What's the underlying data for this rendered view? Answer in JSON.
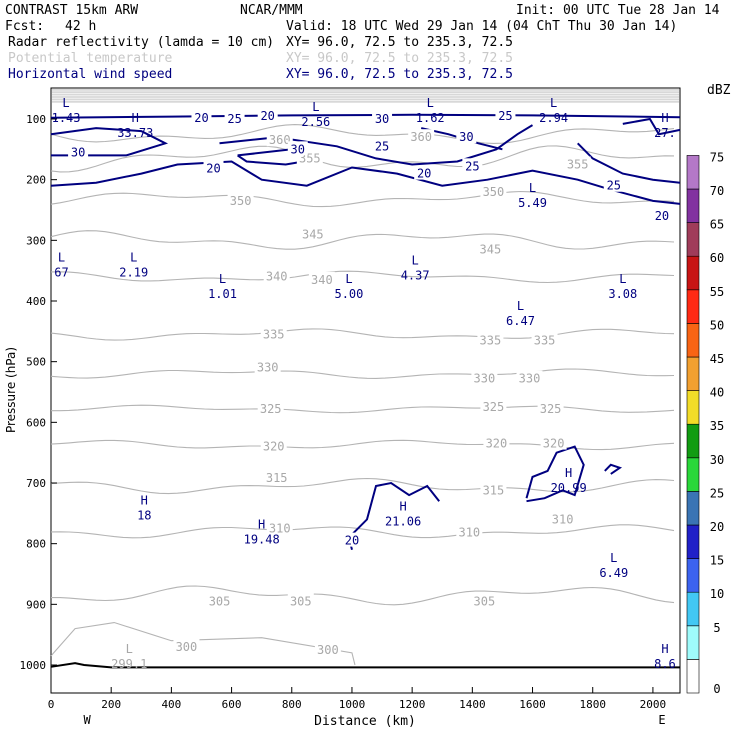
{
  "header": {
    "model": "CONTRAST 15km ARW",
    "org": "NCAR/MMM",
    "init": "Init: 00 UTC Tue 28 Jan 14",
    "fcst_label": "Fcst:",
    "fcst_value": "42 h",
    "valid": "Valid: 18 UTC Wed 29 Jan 14 (04 ChT Thu 30 Jan 14)",
    "fields": [
      {
        "name": "Radar reflectivity (lamda = 10 cm)",
        "xy": "XY=  96.0, 72.5 to 235.3, 72.5",
        "color": "#000000"
      },
      {
        "name": "Potential temperature",
        "xy": "XY=  96.0, 72.5 to 235.3, 72.5",
        "color": "#c8c8c8"
      },
      {
        "name": "Horizontal wind speed",
        "xy": "XY=  96.0, 72.5 to 235.3, 72.5",
        "color": "#000080"
      }
    ]
  },
  "chart_data": {
    "type": "cross-section",
    "xlabel": "Distance (km)",
    "ylabel": "Pressure (hPa)",
    "xlim": [
      0,
      2090
    ],
    "ylim_hPa": [
      1050,
      50
    ],
    "x_ticks": [
      "0",
      "200",
      "400",
      "600",
      "800",
      "1000",
      "1200",
      "1400",
      "1600",
      "1800",
      "2000"
    ],
    "y_ticks": [
      "100",
      "200",
      "300",
      "400",
      "500",
      "600",
      "700",
      "800",
      "900",
      "1000"
    ],
    "x_endpoints": [
      "W",
      "E"
    ],
    "colorbar": {
      "unit": "dBZ",
      "levels": [
        "0",
        "5",
        "10",
        "15",
        "20",
        "25",
        "30",
        "35",
        "40",
        "45",
        "50",
        "55",
        "60",
        "65",
        "70",
        "75"
      ],
      "colors": [
        "#ffffff",
        "#9ffcfc",
        "#42c8f4",
        "#3c63f0",
        "#2020c8",
        "#3a74b4",
        "#2ad73a",
        "#129c12",
        "#f2dc28",
        "#f2a030",
        "#f86414",
        "#ff2a14",
        "#c81414",
        "#a03c5a",
        "#8232a0",
        "#b478c8"
      ]
    },
    "theta_labels": [
      {
        "text": "360",
        "x": 760,
        "p": 135
      },
      {
        "text": "360",
        "x": 1230,
        "p": 130
      },
      {
        "text": "355",
        "x": 860,
        "p": 165
      },
      {
        "text": "355",
        "x": 1750,
        "p": 175
      },
      {
        "text": "350",
        "x": 630,
        "p": 235
      },
      {
        "text": "350",
        "x": 1470,
        "p": 220
      },
      {
        "text": "345",
        "x": 870,
        "p": 290
      },
      {
        "text": "345",
        "x": 1460,
        "p": 315
      },
      {
        "text": "340",
        "x": 750,
        "p": 360
      },
      {
        "text": "340",
        "x": 900,
        "p": 365
      },
      {
        "text": "335",
        "x": 740,
        "p": 455
      },
      {
        "text": "335",
        "x": 1460,
        "p": 465
      },
      {
        "text": "335",
        "x": 1640,
        "p": 465
      },
      {
        "text": "330",
        "x": 720,
        "p": 510
      },
      {
        "text": "330",
        "x": 1440,
        "p": 528
      },
      {
        "text": "330",
        "x": 1590,
        "p": 528
      },
      {
        "text": "325",
        "x": 730,
        "p": 578
      },
      {
        "text": "325",
        "x": 1470,
        "p": 575
      },
      {
        "text": "325",
        "x": 1660,
        "p": 578
      },
      {
        "text": "320",
        "x": 740,
        "p": 640
      },
      {
        "text": "320",
        "x": 1480,
        "p": 635
      },
      {
        "text": "320",
        "x": 1670,
        "p": 635
      },
      {
        "text": "315",
        "x": 750,
        "p": 692
      },
      {
        "text": "315",
        "x": 1470,
        "p": 712
      },
      {
        "text": "310",
        "x": 760,
        "p": 775
      },
      {
        "text": "310",
        "x": 1390,
        "p": 782
      },
      {
        "text": "310",
        "x": 1700,
        "p": 760
      },
      {
        "text": "305",
        "x": 560,
        "p": 895
      },
      {
        "text": "305",
        "x": 830,
        "p": 895
      },
      {
        "text": "305",
        "x": 1440,
        "p": 895
      },
      {
        "text": "300",
        "x": 450,
        "p": 970
      },
      {
        "text": "300",
        "x": 920,
        "p": 975
      }
    ],
    "wind_labels": [
      {
        "text": "30",
        "x": 90,
        "p": 155
      },
      {
        "text": "20",
        "x": 540,
        "p": 182
      },
      {
        "text": "30",
        "x": 820,
        "p": 150
      },
      {
        "text": "25",
        "x": 1100,
        "p": 145
      },
      {
        "text": "30",
        "x": 1380,
        "p": 130
      },
      {
        "text": "25",
        "x": 1400,
        "p": 178
      },
      {
        "text": "20",
        "x": 1240,
        "p": 190
      },
      {
        "text": "25",
        "x": 1870,
        "p": 210
      },
      {
        "text": "20",
        "x": 2030,
        "p": 260
      },
      {
        "text": "20",
        "x": 500,
        "p": 98
      },
      {
        "text": "25",
        "x": 610,
        "p": 100
      },
      {
        "text": "20",
        "x": 720,
        "p": 95
      },
      {
        "text": "30",
        "x": 1100,
        "p": 100
      },
      {
        "text": "25",
        "x": 1510,
        "p": 95
      },
      {
        "text": "20",
        "x": 1000,
        "p": 795
      }
    ],
    "extrema": [
      {
        "type": "L",
        "value": "1.43",
        "x": 50,
        "p": 85
      },
      {
        "type": "H",
        "value": "33.73",
        "x": 280,
        "p": 110
      },
      {
        "type": "L",
        "value": "2.56",
        "x": 880,
        "p": 92
      },
      {
        "type": "L",
        "value": "1.62",
        "x": 1260,
        "p": 85
      },
      {
        "type": "L",
        "value": "2.94",
        "x": 1670,
        "p": 85
      },
      {
        "type": "H",
        "value": "27.",
        "x": 2040,
        "p": 110
      },
      {
        "type": "L",
        "value": "5.49",
        "x": 1600,
        "p": 225
      },
      {
        "type": "L",
        "value": "67",
        "x": 35,
        "p": 340
      },
      {
        "type": "L",
        "value": "2.19",
        "x": 275,
        "p": 340
      },
      {
        "type": "L",
        "value": "1.01",
        "x": 570,
        "p": 375
      },
      {
        "type": "L",
        "value": "5.00",
        "x": 990,
        "p": 375
      },
      {
        "type": "L",
        "value": "4.37",
        "x": 1210,
        "p": 345
      },
      {
        "type": "L",
        "value": "6.47",
        "x": 1560,
        "p": 420
      },
      {
        "type": "L",
        "value": "3.08",
        "x": 1900,
        "p": 375
      },
      {
        "type": "H",
        "value": "18",
        "x": 310,
        "p": 740
      },
      {
        "type": "H",
        "value": "19.48",
        "x": 700,
        "p": 780
      },
      {
        "type": "H",
        "value": "21.06",
        "x": 1170,
        "p": 750
      },
      {
        "type": "H",
        "value": "20.99",
        "x": 1720,
        "p": 695
      },
      {
        "type": "L",
        "value": "6.49",
        "x": 1870,
        "p": 835
      },
      {
        "type": "L",
        "value": "299.1",
        "x": 260,
        "p": 985
      },
      {
        "type": "H",
        "value": "8.6",
        "x": 2040,
        "p": 985
      }
    ]
  }
}
